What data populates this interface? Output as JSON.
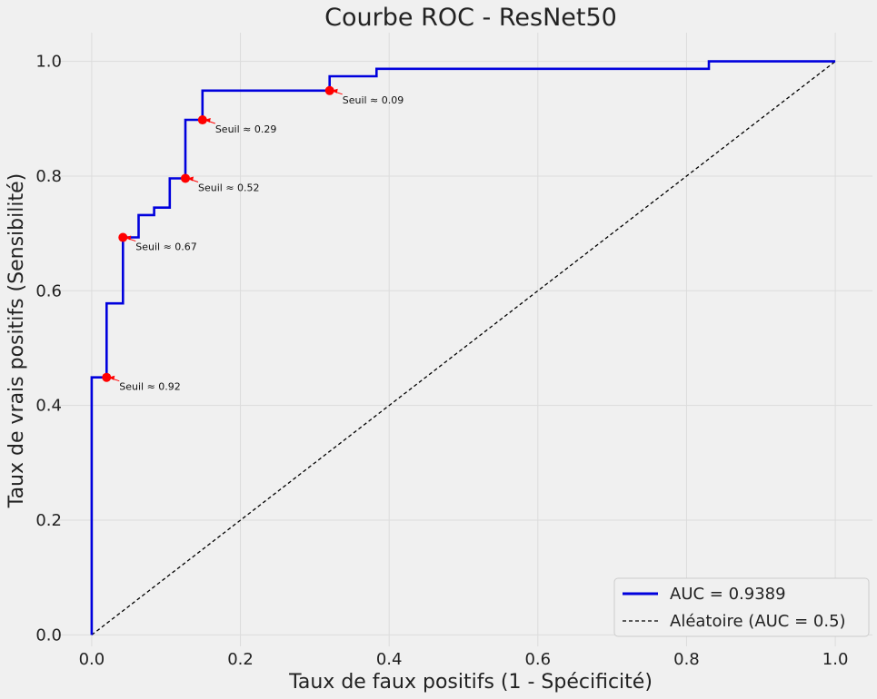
{
  "chart_data": {
    "type": "line",
    "title": "Courbe ROC - ResNet50",
    "xlabel": "Taux de faux positifs (1 - Spécificité)",
    "ylabel": "Taux de vrais positifs (Sensibilité)",
    "xlim": [
      -0.05,
      1.05
    ],
    "ylim": [
      -0.02,
      1.05
    ],
    "xticks": [
      0.0,
      0.2,
      0.4,
      0.6,
      0.8,
      1.0
    ],
    "xtick_labels": [
      "0.0",
      "0.2",
      "0.4",
      "0.6",
      "0.8",
      "1.0"
    ],
    "yticks": [
      0.0,
      0.2,
      0.4,
      0.6,
      0.8,
      1.0
    ],
    "ytick_labels": [
      "0.0",
      "0.2",
      "0.4",
      "0.6",
      "0.8",
      "1.0"
    ],
    "grid": true,
    "legend_position": "bottom-right",
    "series": [
      {
        "name": "AUC = 0.9389",
        "color": "#0000dd",
        "style": "step",
        "x": [
          0.0,
          0.0,
          0.02,
          0.02,
          0.042,
          0.042,
          0.063,
          0.063,
          0.084,
          0.084,
          0.105,
          0.105,
          0.126,
          0.126,
          0.149,
          0.149,
          0.32,
          0.32,
          0.383,
          0.383,
          0.83,
          0.83,
          1.0
        ],
        "y": [
          0.0,
          0.449,
          0.449,
          0.578,
          0.578,
          0.693,
          0.693,
          0.732,
          0.732,
          0.745,
          0.745,
          0.796,
          0.796,
          0.898,
          0.898,
          0.949,
          0.949,
          0.974,
          0.974,
          0.987,
          0.987,
          1.0,
          1.0
        ]
      },
      {
        "name": "Aléatoire (AUC = 0.5)",
        "color": "#000000",
        "style": "dashed",
        "x": [
          0.0,
          1.0
        ],
        "y": [
          0.0,
          1.0
        ]
      }
    ],
    "threshold_points": [
      {
        "x": 0.02,
        "y": 0.449,
        "label": "Seuil ≈ 0.92"
      },
      {
        "x": 0.042,
        "y": 0.693,
        "label": "Seuil ≈ 0.67"
      },
      {
        "x": 0.126,
        "y": 0.796,
        "label": "Seuil ≈ 0.52"
      },
      {
        "x": 0.149,
        "y": 0.898,
        "label": "Seuil ≈ 0.29"
      },
      {
        "x": 0.32,
        "y": 0.949,
        "label": "Seuil ≈ 0.09"
      }
    ],
    "marker_color": "#ff0000"
  }
}
